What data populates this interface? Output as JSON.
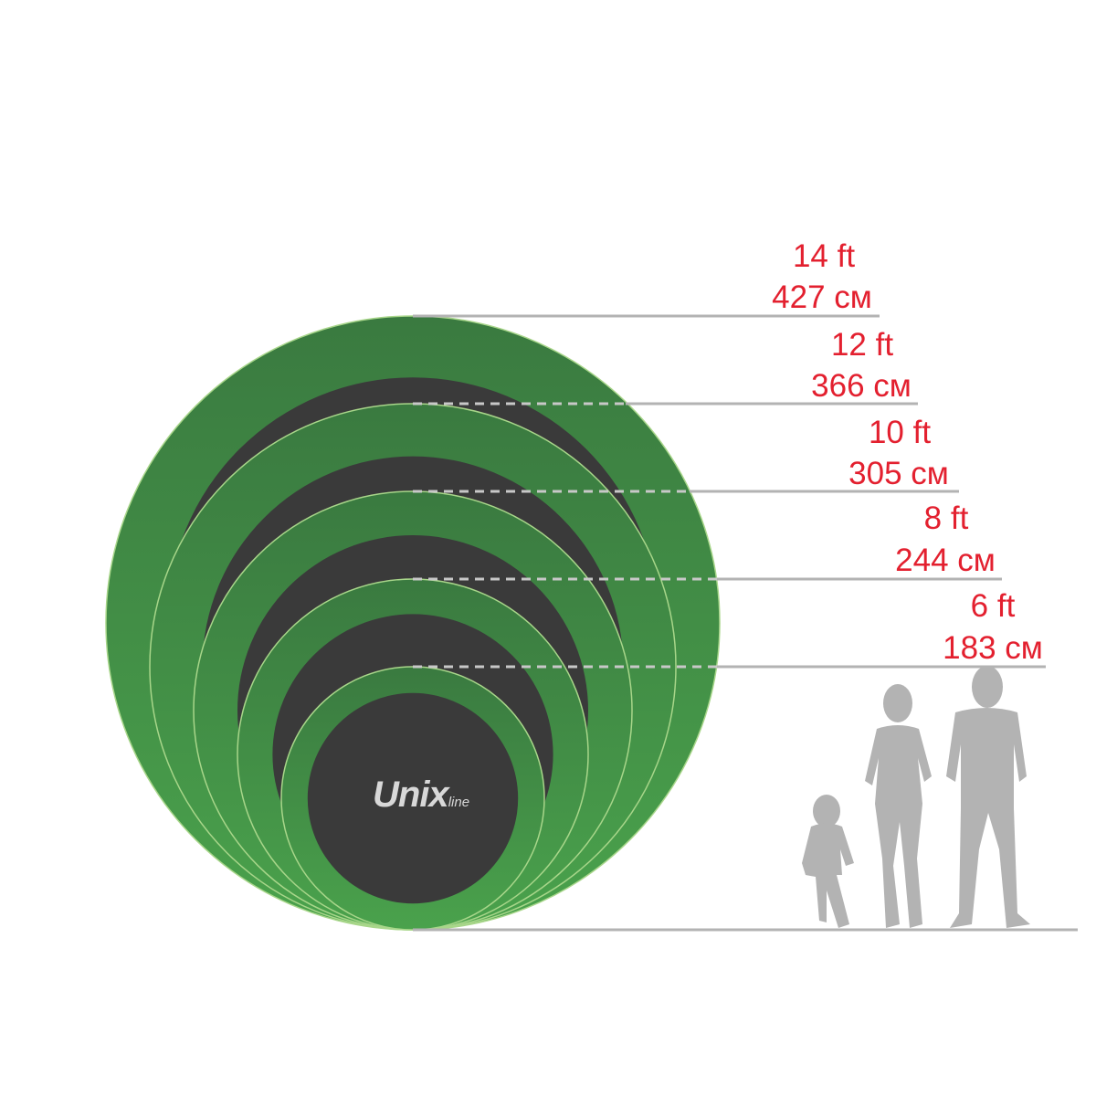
{
  "brand": {
    "logo_main": "Unix",
    "logo_sub": "line"
  },
  "sizes": [
    {
      "ft": "14 ft",
      "cm": "427 см",
      "cm_value": 427
    },
    {
      "ft": "12 ft",
      "cm": "366 см",
      "cm_value": 366
    },
    {
      "ft": "10 ft",
      "cm": "305 см",
      "cm_value": 305
    },
    {
      "ft": "8 ft",
      "cm": "244 см",
      "cm_value": 244
    },
    {
      "ft": "6 ft",
      "cm": "183 см",
      "cm_value": 183
    }
  ],
  "colors": {
    "frame_green": "#3f8f43",
    "mat": "#3a3a3a",
    "label_red": "#e3202f",
    "lines": "#b3b3b3",
    "people": "#b3b3b3"
  },
  "people": [
    "child",
    "woman",
    "man"
  ]
}
